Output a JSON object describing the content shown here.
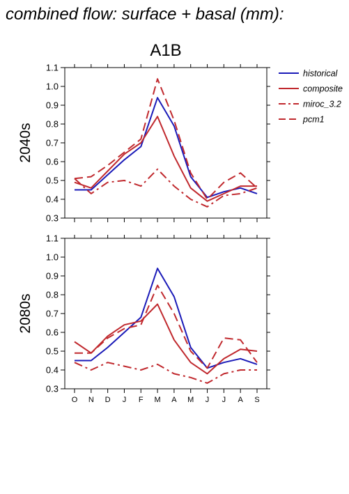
{
  "figure": {
    "suptitle": "combined flow: surface + basal (mm):",
    "scenario_title": "A1B"
  },
  "legend": {
    "placement": "right",
    "entries": [
      {
        "label": "historical",
        "color": "#1a1ab8",
        "dash": "solid"
      },
      {
        "label": "composite",
        "color": "#c0282d",
        "dash": "solid"
      },
      {
        "label": "miroc_3.2",
        "color": "#c0282d",
        "dash": "dashdot"
      },
      {
        "label": "pcm1",
        "color": "#c0282d",
        "dash": "dashed"
      }
    ]
  },
  "chart_data": [
    {
      "type": "line",
      "title": "2040s",
      "categories": [
        "O",
        "N",
        "D",
        "J",
        "F",
        "M",
        "A",
        "M",
        "J",
        "J",
        "A",
        "S"
      ],
      "ylim": [
        0.3,
        1.1
      ],
      "yticks": [
        "0.3",
        "0.4",
        "0.5",
        "0.6",
        "0.7",
        "0.8",
        "0.9",
        "1.0",
        "1.1"
      ],
      "grid": false,
      "series": [
        {
          "name": "historical",
          "values": [
            0.45,
            0.45,
            0.53,
            0.61,
            0.68,
            0.94,
            0.79,
            0.52,
            0.41,
            0.44,
            0.46,
            0.43
          ]
        },
        {
          "name": "composite",
          "values": [
            0.49,
            0.46,
            0.55,
            0.64,
            0.7,
            0.84,
            0.63,
            0.46,
            0.39,
            0.43,
            0.47,
            0.47
          ]
        },
        {
          "name": "miroc_3.2",
          "values": [
            0.51,
            0.43,
            0.49,
            0.5,
            0.47,
            0.56,
            0.47,
            0.4,
            0.36,
            0.42,
            0.43,
            0.46
          ]
        },
        {
          "name": "pcm1",
          "values": [
            0.51,
            0.52,
            0.58,
            0.65,
            0.72,
            1.04,
            0.82,
            0.54,
            0.4,
            0.49,
            0.54,
            0.46
          ]
        }
      ]
    },
    {
      "type": "line",
      "title": "2080s",
      "categories": [
        "O",
        "N",
        "D",
        "J",
        "F",
        "M",
        "A",
        "M",
        "J",
        "J",
        "A",
        "S"
      ],
      "ylim": [
        0.3,
        1.1
      ],
      "yticks": [
        "0.3",
        "0.4",
        "0.5",
        "0.6",
        "0.7",
        "0.8",
        "0.9",
        "1.0",
        "1.1"
      ],
      "grid": false,
      "series": [
        {
          "name": "historical",
          "values": [
            0.45,
            0.45,
            0.52,
            0.6,
            0.68,
            0.94,
            0.79,
            0.52,
            0.41,
            0.44,
            0.46,
            0.43
          ]
        },
        {
          "name": "composite",
          "values": [
            0.55,
            0.49,
            0.58,
            0.64,
            0.66,
            0.75,
            0.56,
            0.44,
            0.38,
            0.46,
            0.51,
            0.5
          ]
        },
        {
          "name": "miroc_3.2",
          "values": [
            0.44,
            0.4,
            0.44,
            0.42,
            0.4,
            0.43,
            0.38,
            0.36,
            0.33,
            0.38,
            0.4,
            0.4
          ]
        },
        {
          "name": "pcm1",
          "values": [
            0.49,
            0.49,
            0.57,
            0.62,
            0.64,
            0.85,
            0.7,
            0.5,
            0.41,
            0.57,
            0.56,
            0.44
          ]
        }
      ]
    }
  ]
}
